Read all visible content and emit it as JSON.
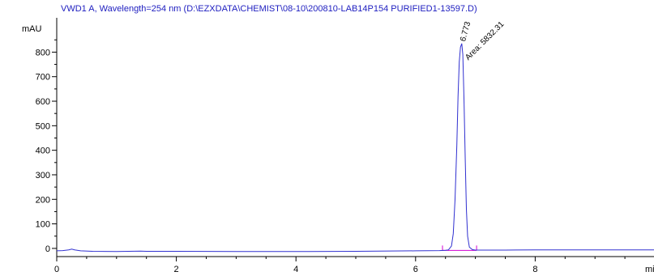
{
  "chart_data": {
    "type": "line",
    "title": "VWD1 A, Wavelength=254 nm (D:\\EZXDATA\\CHEMIST\\08-10\\200810-LAB14P154 PURIFIED1-13597.D)",
    "ylabel": "mAU",
    "xlabel": "mi",
    "xlim": [
      0,
      10
    ],
    "ylim": [
      -30,
      930
    ],
    "y_ticks": [
      0,
      100,
      200,
      300,
      400,
      500,
      600,
      700,
      800
    ],
    "x_ticks": [
      0,
      2,
      4,
      6,
      8
    ],
    "grid": false,
    "colors": {
      "trace": "#3030d0",
      "title": "#2020c0",
      "baseline": "#d000d0",
      "axis": "#000000"
    },
    "series": [
      {
        "x": [
          0.0,
          0.1,
          0.2,
          0.25,
          0.3,
          0.4,
          0.6,
          1.0,
          1.4,
          1.5,
          2.0,
          3.0,
          4.0,
          5.0,
          6.0,
          6.4,
          6.5,
          6.55,
          6.6,
          6.63,
          6.66,
          6.69,
          6.71,
          6.73,
          6.75,
          6.773,
          6.79,
          6.81,
          6.83,
          6.85,
          6.87,
          6.9,
          6.95,
          7.0,
          7.1,
          7.5,
          8.0,
          9.0,
          10.0
        ],
        "y": [
          -10,
          -9,
          -6,
          -3,
          -6,
          -10,
          -12,
          -13,
          -11,
          -12,
          -12,
          -13,
          -13,
          -12,
          -10,
          -9,
          -8,
          -6,
          10,
          60,
          200,
          420,
          620,
          760,
          820,
          835,
          790,
          600,
          360,
          160,
          50,
          5,
          -5,
          -7,
          -7,
          -7,
          -6,
          -6,
          -6
        ]
      }
    ],
    "annotations": [
      {
        "x": 6.773,
        "y": 835,
        "label": "6.773"
      },
      {
        "x": 6.773,
        "y": 835,
        "label": "Area: 5832.31"
      }
    ]
  }
}
